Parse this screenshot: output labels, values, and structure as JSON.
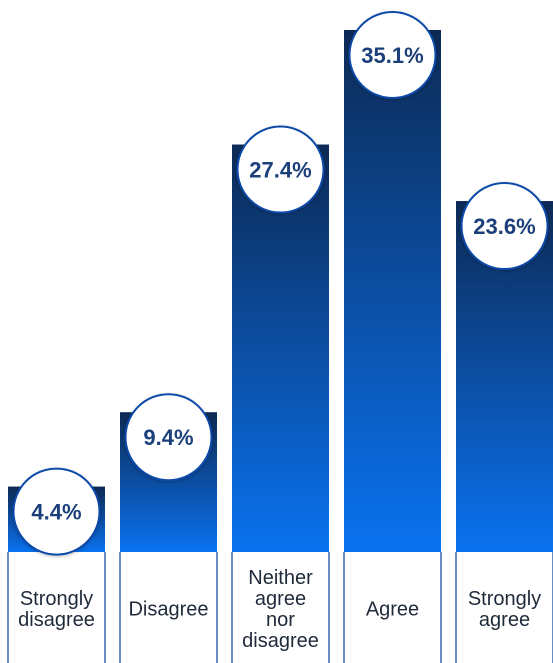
{
  "chart_data": {
    "type": "bar",
    "categories": [
      [
        "Strongly",
        "disagree"
      ],
      [
        "Disagree"
      ],
      [
        "Neither",
        "agree",
        "nor",
        "disagree"
      ],
      [
        "Agree"
      ],
      [
        "Strongly",
        "agree"
      ]
    ],
    "values": [
      4.4,
      9.4,
      27.4,
      35.1,
      23.6
    ],
    "value_labels": [
      "4.4%",
      "9.4%",
      "27.4%",
      "35.1%",
      "23.6%"
    ],
    "title": "",
    "xlabel": "",
    "ylabel": "",
    "ylim": [
      0,
      35.1
    ],
    "grid": false,
    "legend": "none",
    "colors": {
      "bar_top": "#0d2a55",
      "bar_bottom": "#0a72f0",
      "circle_border": "#0a4aa8",
      "label_text": "#1b3f7a",
      "category_text": "#1f2a3a",
      "divider": "#1a4ea0"
    }
  }
}
